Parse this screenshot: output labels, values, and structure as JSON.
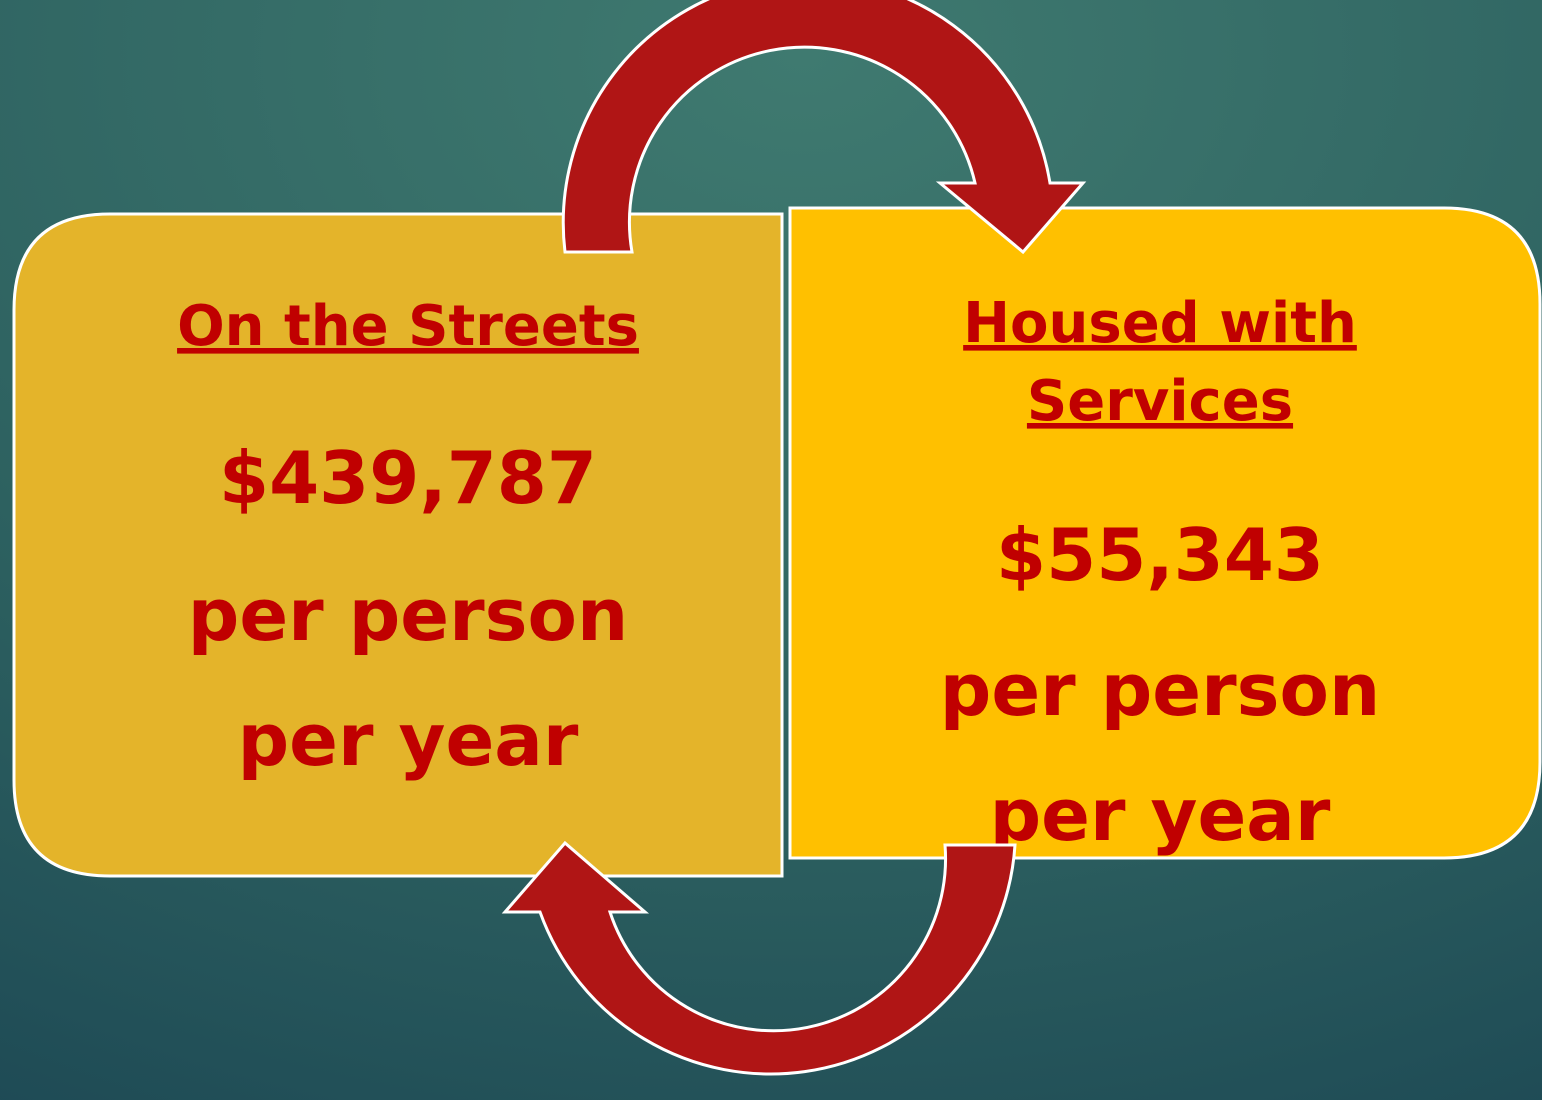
{
  "left_box": {
    "title_lines": [
      "On the Streets"
    ],
    "amount": "$439,787",
    "lines": [
      "per person",
      "per year"
    ]
  },
  "right_box": {
    "title_lines": [
      "Housed with",
      "Services"
    ],
    "amount": "$55,343",
    "lines": [
      "per person",
      "per year"
    ]
  }
}
